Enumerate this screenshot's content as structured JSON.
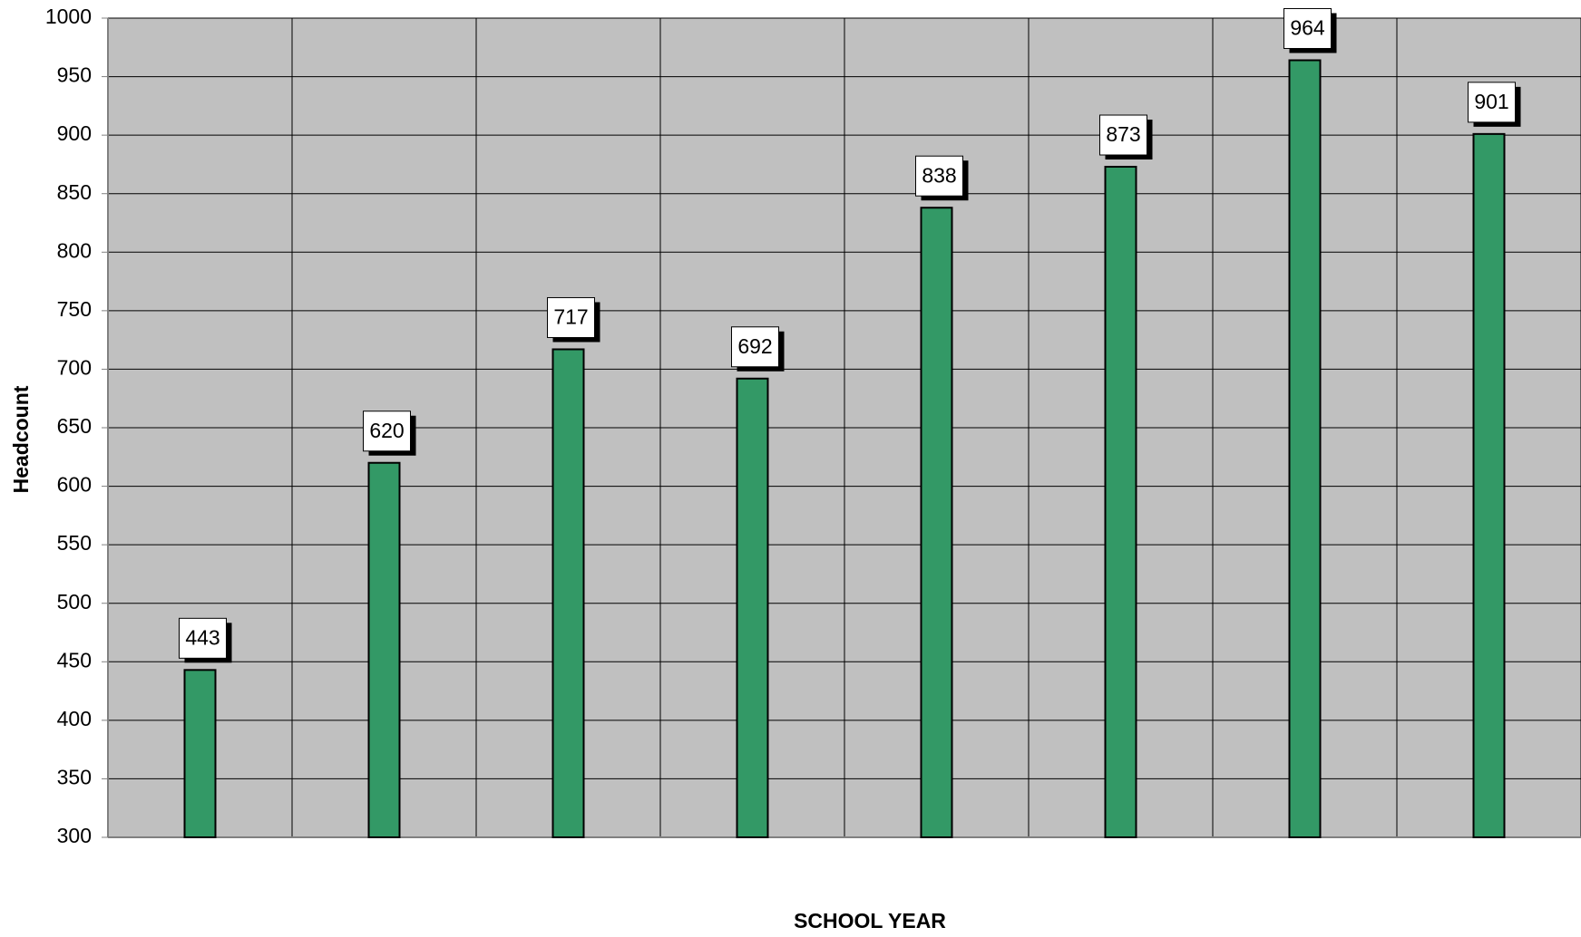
{
  "chart_data": {
    "type": "bar",
    "x_label": "SCHOOL YEAR",
    "y_label": "Headcount",
    "categories": [
      null,
      null,
      null,
      null,
      null,
      null,
      null,
      null
    ],
    "values": [
      443,
      620,
      717,
      692,
      838,
      873,
      964,
      901
    ],
    "color": "#339966",
    "background": "#c0c0c0",
    "ylim": [
      300,
      1000
    ],
    "yticks": [
      300,
      350,
      400,
      450,
      500,
      550,
      600,
      650,
      700,
      750,
      800,
      850,
      900,
      950,
      1000
    ],
    "grid": true
  }
}
